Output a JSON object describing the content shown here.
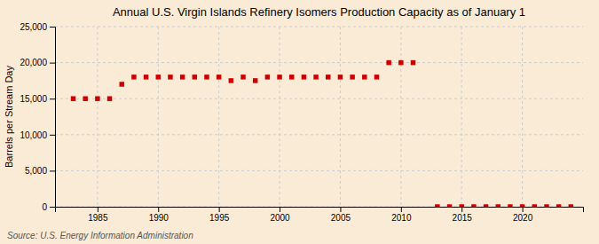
{
  "chart_data": {
    "type": "scatter",
    "title": "Annual U.S. Virgin Islands Refinery Isomers Production Capacity as of January 1",
    "ylabel": "Barrels per Stream Day",
    "annotation": "Source: U.S. Energy Information Administration",
    "x": [
      1983,
      1984,
      1985,
      1986,
      1987,
      1988,
      1989,
      1990,
      1991,
      1992,
      1993,
      1994,
      1995,
      1996,
      1997,
      1998,
      1999,
      2000,
      2001,
      2002,
      2003,
      2004,
      2005,
      2006,
      2007,
      2008,
      2009,
      2010,
      2011,
      2013,
      2014,
      2015,
      2016,
      2017,
      2018,
      2019,
      2020,
      2021,
      2022,
      2023,
      2024
    ],
    "values": [
      15000,
      15000,
      15000,
      15000,
      17000,
      18000,
      18000,
      18000,
      18000,
      18000,
      18000,
      18000,
      18000,
      17500,
      18000,
      17500,
      18000,
      18000,
      18000,
      18000,
      18000,
      18000,
      18000,
      18000,
      18000,
      18000,
      20000,
      20000,
      20000,
      0,
      0,
      0,
      0,
      0,
      0,
      0,
      0,
      0,
      0,
      0,
      0
    ],
    "color": "#cc0000",
    "marker": "square",
    "xlim": [
      1981.5,
      2025
    ],
    "xticks": [
      1985,
      1990,
      1995,
      2000,
      2005,
      2010,
      2015,
      2020
    ],
    "ylim": [
      0,
      25000
    ],
    "yticks": [
      0,
      {
        "value": 5000,
        "label": "5,000"
      },
      {
        "value": 10000,
        "label": "10,000"
      },
      {
        "value": 15000,
        "label": "15,000"
      },
      {
        "value": 20000,
        "label": "20,000"
      },
      {
        "value": 25000,
        "label": "25,000"
      }
    ],
    "grid": true
  }
}
